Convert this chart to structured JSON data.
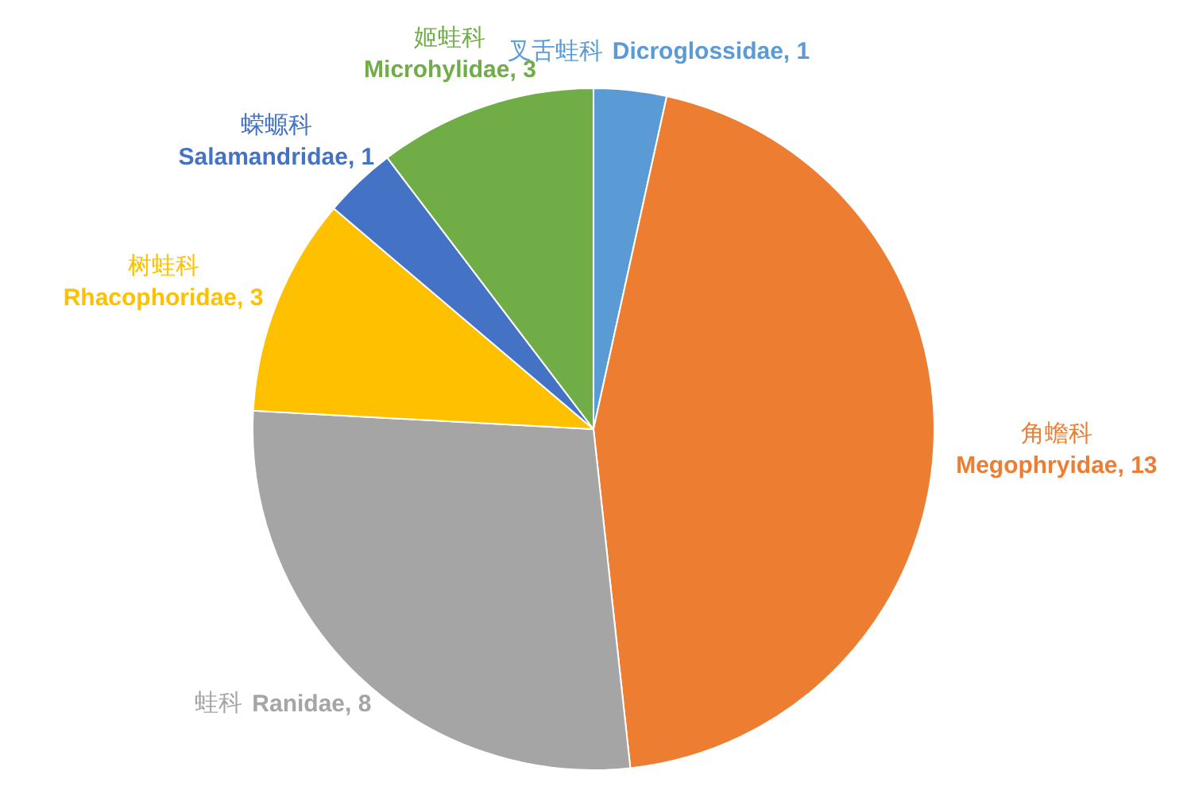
{
  "chart_data": {
    "type": "pie",
    "categories": [
      "叉舌蛙科 Dicroglossidae, 1",
      "角蟾科 Megophryidae, 13",
      "蛙科 Ranidae, 8",
      "树蛙科 Rhacophoridae, 3",
      "蝾螈科 Salamandridae, 1",
      "姬蛙科 Microhylidae, 3"
    ],
    "values": [
      1,
      13,
      8,
      3,
      1,
      3
    ],
    "colors": [
      "#5b9bd5",
      "#ed7d31",
      "#a5a5a5",
      "#ffc000",
      "#4472c4",
      "#70ad47"
    ],
    "legend": false
  }
}
